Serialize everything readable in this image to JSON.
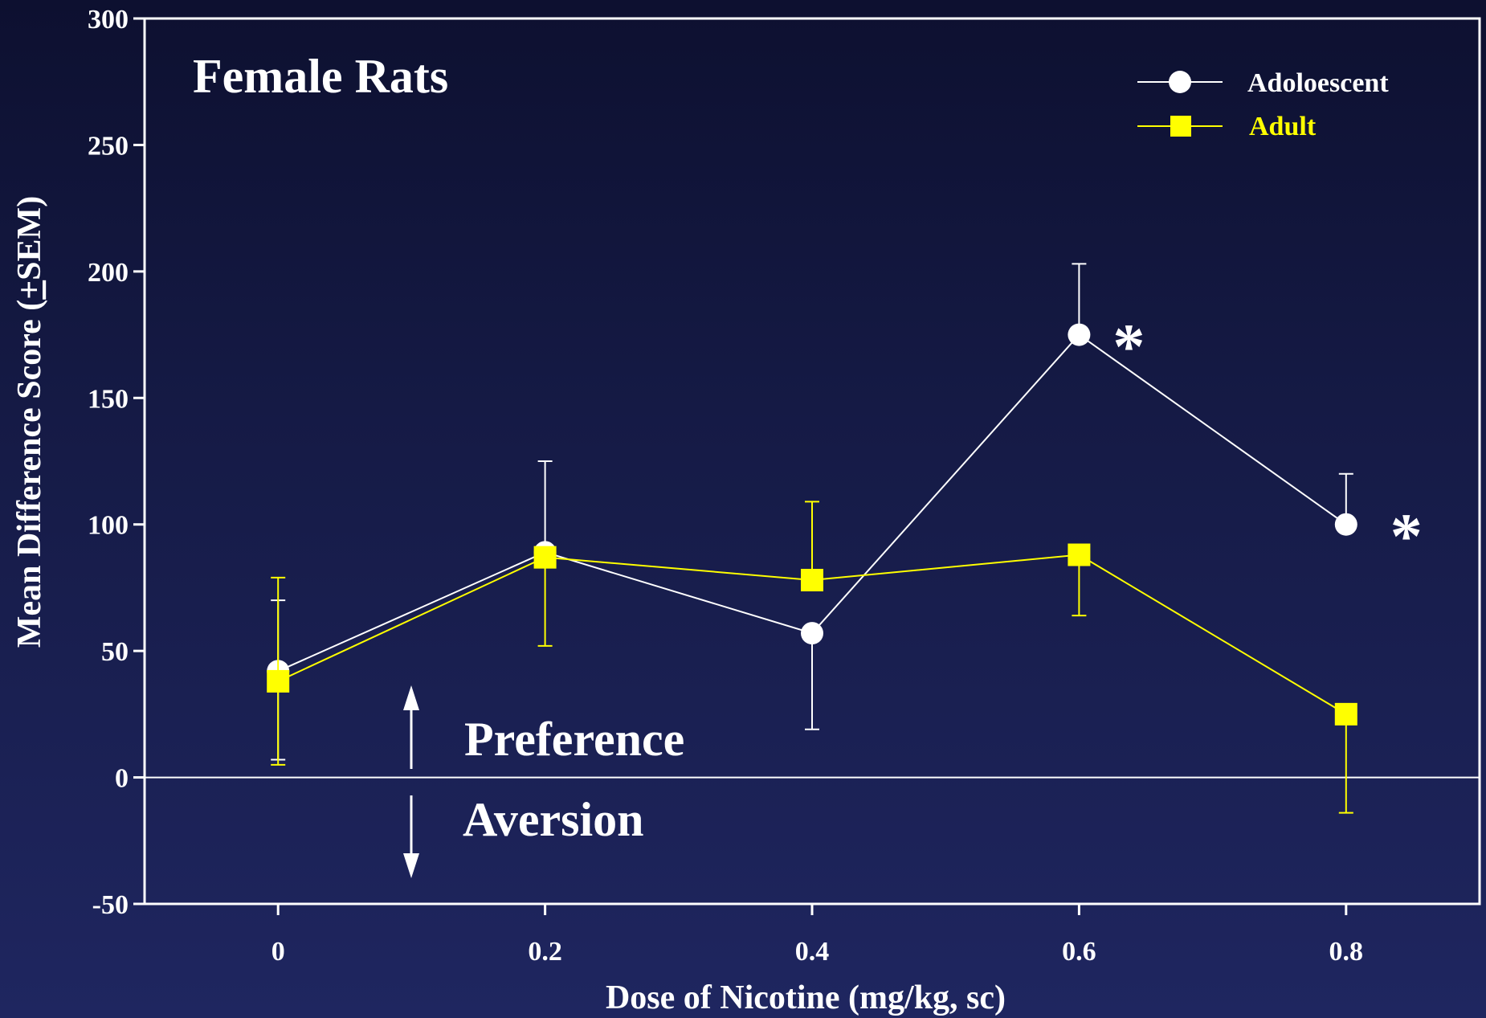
{
  "chart_data": {
    "type": "line",
    "title": "Female Rats",
    "xlabel": "Dose of Nicotine (mg/kg, sc)",
    "ylabel_pre": "Mean Difference Score (",
    "ylabel_pm": "+",
    "ylabel_post": "SEM)",
    "x": [
      0,
      0.2,
      0.4,
      0.6,
      0.8
    ],
    "x_tick_labels": [
      "0",
      "0.2",
      "0.4",
      "0.6",
      "0.8"
    ],
    "xlim": [
      -0.1,
      0.9
    ],
    "ylim": [
      -50,
      300
    ],
    "y_ticks": [
      -50,
      0,
      50,
      100,
      150,
      200,
      250,
      300
    ],
    "y_tick_labels": [
      "-50",
      "0",
      "50",
      "100",
      "150",
      "200",
      "250",
      "300"
    ],
    "series": [
      {
        "name": "Adoloescent",
        "color": "#ffffff",
        "marker": "circle",
        "values": [
          42,
          89,
          57,
          175,
          100
        ],
        "err_upper": [
          70,
          125,
          57,
          203,
          120
        ],
        "err_lower": [
          7,
          89,
          19,
          175,
          100
        ]
      },
      {
        "name": "Adult",
        "color": "#ffff00",
        "marker": "square",
        "values": [
          38,
          87,
          78,
          88,
          25
        ],
        "err_upper": [
          79,
          87,
          109,
          88,
          25
        ],
        "err_lower": [
          5,
          52,
          78,
          64,
          -14
        ]
      }
    ],
    "significance": [
      {
        "x": 0.6,
        "label": "*"
      },
      {
        "x": 0.8,
        "label": "*"
      }
    ],
    "annotations": {
      "preference": "Preference",
      "aversion": "Aversion"
    },
    "legend_position": "top-right",
    "grid": false,
    "reference_line_y": 0,
    "background_color": "#151a45",
    "axis_color": "#ffffff"
  }
}
